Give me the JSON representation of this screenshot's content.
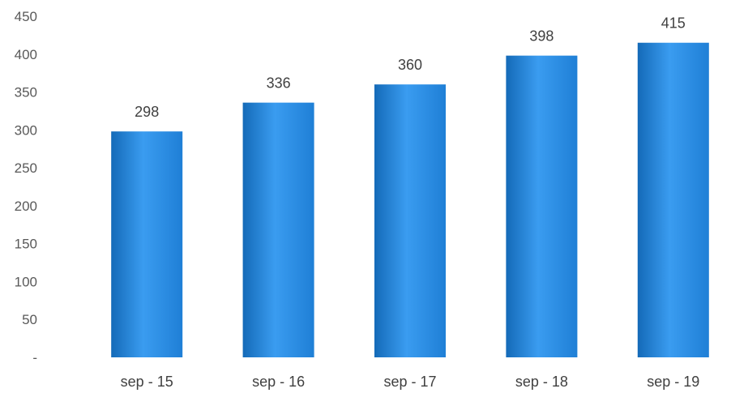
{
  "chart_data": {
    "type": "bar",
    "categories": [
      "sep - 15",
      "sep - 16",
      "sep - 17",
      "sep - 18",
      "sep - 19"
    ],
    "values": [
      298,
      336,
      360,
      398,
      415
    ],
    "data_labels": [
      "298",
      "336",
      "360",
      "398",
      "415"
    ],
    "y_tick_labels": [
      "-",
      "50",
      "100",
      "150",
      "200",
      "250",
      "300",
      "350",
      "400",
      "450"
    ],
    "ylim": [
      0,
      450
    ],
    "grid": false,
    "legend": "none",
    "bar_color": "#1f7fd6",
    "bar_color_light": "#3a9cf0",
    "bar_color_dark": "#146ab8"
  }
}
